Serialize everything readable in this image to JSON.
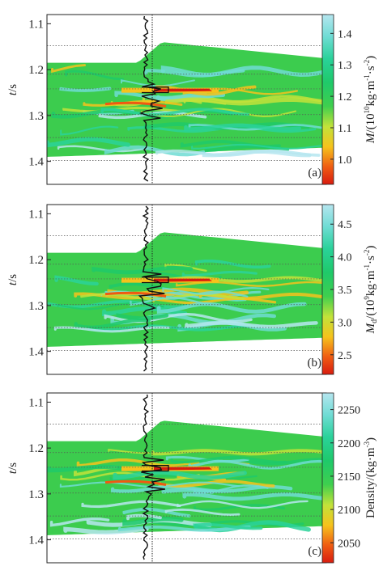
{
  "chart_data": [
    {
      "type": "heatmap",
      "panel_label": "(a)",
      "ylabel_italic": "t",
      "ylabel_unit": "/s",
      "yticks": [
        "1.1",
        "1.2",
        "1.3",
        "1.4"
      ],
      "ylim": [
        1.08,
        1.45
      ],
      "colorbar": {
        "label_italic": "M",
        "label_rest": "/(10",
        "label_exp": "10",
        "label_unit": "kg·m",
        "label_unit_exp": "-1",
        "label_dot": "·s",
        "label_dot_exp": "-2",
        "label_close": ")",
        "ticks": [
          "1.4",
          "1.3",
          "1.2",
          "1.1",
          "1.0"
        ],
        "range": [
          0.92,
          1.46
        ]
      },
      "horizon_lines_t": [
        1.148,
        1.21,
        1.242,
        1.298,
        1.348,
        1.398
      ]
    },
    {
      "type": "heatmap",
      "panel_label": "(b)",
      "ylabel_italic": "t",
      "ylabel_unit": "/s",
      "yticks": [
        "1.1",
        "1.2",
        "1.3",
        "1.4"
      ],
      "ylim": [
        1.08,
        1.45
      ],
      "colorbar": {
        "label_italic": "M",
        "label_sub": "d",
        "label_rest": "/(10",
        "label_exp": "9",
        "label_unit": "kg·m",
        "label_unit_exp": "-1",
        "label_dot": "·s",
        "label_dot_exp": "-2",
        "label_close": ")",
        "ticks": [
          "4.5",
          "4.0",
          "3.5",
          "3.0",
          "2.5"
        ],
        "range": [
          2.2,
          4.8
        ]
      },
      "horizon_lines_t": [
        1.148,
        1.21,
        1.242,
        1.298,
        1.348,
        1.398
      ]
    },
    {
      "type": "heatmap",
      "panel_label": "(c)",
      "ylabel_italic": "t",
      "ylabel_unit": "/s",
      "yticks": [
        "1.1",
        "1.2",
        "1.3",
        "1.4"
      ],
      "ylim": [
        1.08,
        1.45
      ],
      "colorbar": {
        "label_plain": "Density/(kg·m",
        "label_exp": "-3",
        "label_close": ")",
        "ticks": [
          "2250",
          "2200",
          "2150",
          "2100",
          "2050"
        ],
        "range": [
          2020,
          2275
        ]
      },
      "horizon_lines_t": [
        1.148,
        1.21,
        1.242,
        1.298,
        1.348,
        1.398
      ]
    }
  ],
  "colors": {
    "scale": [
      "#d81c0f",
      "#ef5a12",
      "#f6c21c",
      "#c2e23a",
      "#3fcf4e",
      "#1fc96a",
      "#2ad29a",
      "#6fdcd4",
      "#b6e6f0"
    ],
    "base": "#3ccc4e",
    "trace": "#111111",
    "grid": "#555555"
  }
}
